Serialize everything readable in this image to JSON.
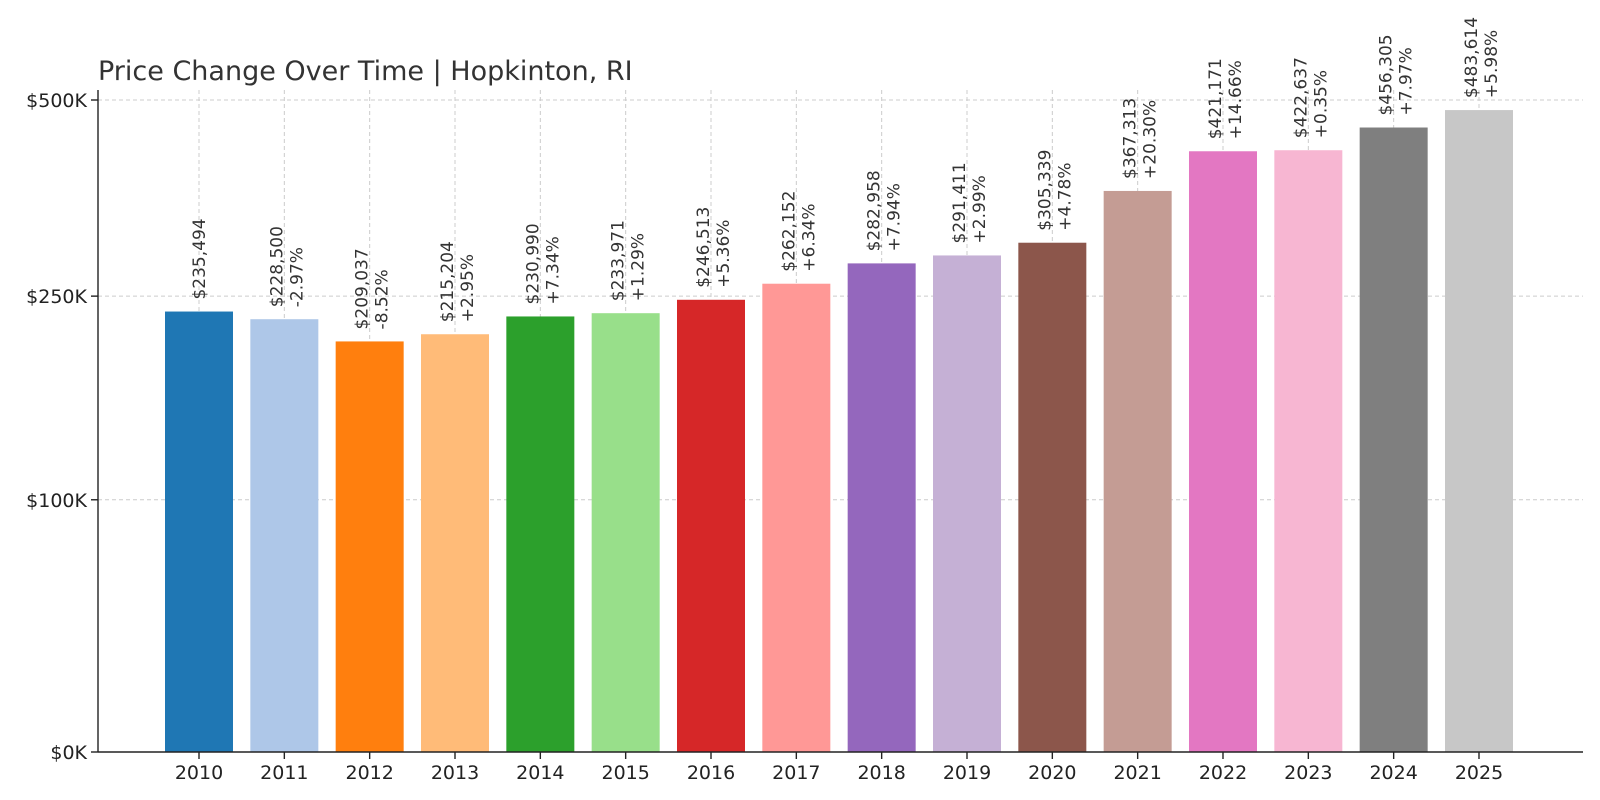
{
  "chart_data": {
    "type": "bar",
    "title": "Price Change Over Time | Hopkinton, RI",
    "xlabel": "",
    "ylabel": "",
    "categories": [
      "2010",
      "2011",
      "2012",
      "2013",
      "2014",
      "2015",
      "2016",
      "2017",
      "2018",
      "2019",
      "2020",
      "2021",
      "2022",
      "2023",
      "2024",
      "2025"
    ],
    "values": [
      235494,
      228500,
      209037,
      215204,
      230990,
      233971,
      246513,
      262152,
      282958,
      291411,
      305339,
      367313,
      421171,
      422637,
      456305,
      483614
    ],
    "value_labels": [
      "$235,494",
      "$228,500",
      "$209,037",
      "$215,204",
      "$230,990",
      "$233,971",
      "$246,513",
      "$262,152",
      "$282,958",
      "$291,411",
      "$305,339",
      "$367,313",
      "$421,171",
      "$422,637",
      "$456,305",
      "$483,614"
    ],
    "change_labels": [
      "",
      "-2.97%",
      "-8.52%",
      "+2.95%",
      "+7.34%",
      "+1.29%",
      "+5.36%",
      "+6.34%",
      "+7.94%",
      "+2.99%",
      "+4.78%",
      "+20.30%",
      "+14.66%",
      "+0.35%",
      "+7.97%",
      "+5.98%"
    ],
    "colors": [
      "#1f77b4",
      "#aec7e8",
      "#ff7f0e",
      "#ffbb78",
      "#2ca02c",
      "#98df8a",
      "#d62728",
      "#ff9896",
      "#9467bd",
      "#c5b0d5",
      "#8c564b",
      "#c49c94",
      "#e377c2",
      "#f7b6d2",
      "#7f7f7f",
      "#c7c7c7"
    ],
    "y_ticks": [
      0,
      100000,
      250000,
      500000
    ],
    "y_tick_labels": [
      "$0K",
      "$100K",
      "$250K",
      "$500K"
    ],
    "y_scale": "symlog",
    "ylim": [
      0,
      500000
    ],
    "grid": true,
    "legend": "none"
  }
}
